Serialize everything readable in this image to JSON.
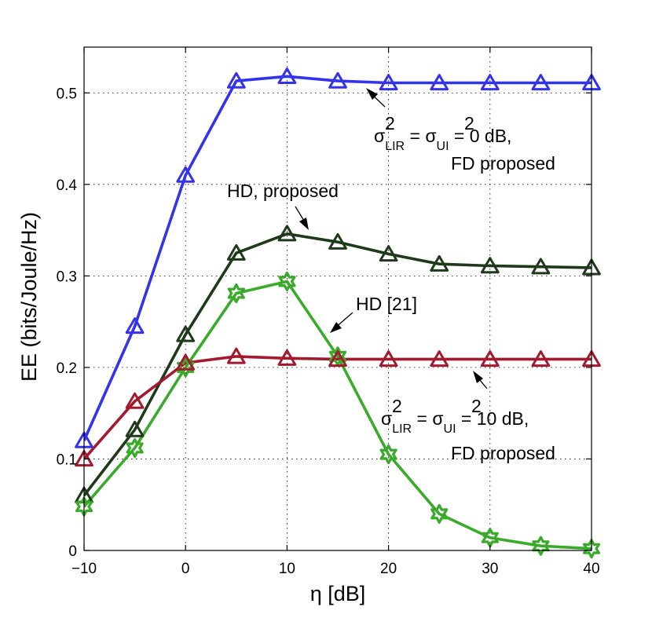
{
  "chart_data": {
    "type": "line",
    "xlabel": "η [dB]",
    "ylabel": "EE (bits/Joule/Hz)",
    "xlim": [
      -10,
      40
    ],
    "ylim": [
      0,
      0.55
    ],
    "grid": true,
    "x": [
      -10,
      -5,
      0,
      5,
      10,
      15,
      20,
      25,
      30,
      35,
      40
    ],
    "xticks": [
      "−10",
      "0",
      "10",
      "20",
      "30",
      "40"
    ],
    "yticks": [
      "0",
      "0.1",
      "0.2",
      "0.3",
      "0.4",
      "0.5"
    ],
    "series": [
      {
        "marker": "triangle",
        "color": "#3333ee",
        "values": [
          0.12,
          0.245,
          0.41,
          0.513,
          0.518,
          0.513,
          0.511,
          0.511,
          0.511,
          0.511,
          0.511
        ]
      },
      {
        "marker": "triangle",
        "color": "#1e3a1a",
        "values": [
          0.06,
          0.132,
          0.236,
          0.325,
          0.346,
          0.337,
          0.324,
          0.313,
          0.311,
          0.31,
          0.309
        ]
      },
      {
        "marker": "star",
        "color": "#3aaa2a",
        "values": [
          0.048,
          0.112,
          0.2,
          0.281,
          0.294,
          0.212,
          0.105,
          0.04,
          0.014,
          0.005,
          0.002
        ]
      },
      {
        "marker": "triangle",
        "color": "#a31a2e",
        "values": [
          0.1,
          0.163,
          0.205,
          0.212,
          0.21,
          0.209,
          0.209,
          0.209,
          0.209,
          0.209,
          0.209
        ]
      }
    ],
    "annotations": [
      {
        "id": "fd-0db",
        "line1": {
          "sigma": "σ",
          "sub1": "LIR",
          "eq": " = ",
          "sigma2": "σ",
          "sub2": "UI",
          "tail": " = 0 dB,"
        },
        "line2": "FD proposed"
      },
      {
        "id": "hd-proposed",
        "text": "HD, proposed"
      },
      {
        "id": "hd-21",
        "text": "HD [21]"
      },
      {
        "id": "fd-10db",
        "line1": {
          "sigma": "σ",
          "sub1": "LIR",
          "eq": " = ",
          "sigma2": "σ",
          "sub2": "UI",
          "tail": " = 10 dB,"
        },
        "line2": "FD proposed"
      }
    ],
    "superscript": "2"
  }
}
